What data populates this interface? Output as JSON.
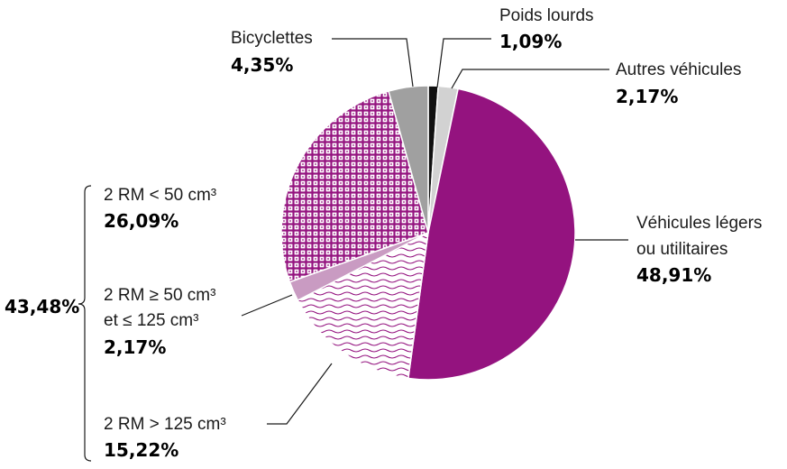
{
  "colors": {
    "poids_lourds": "#111111",
    "autres_vehicules": "#d2d2d2",
    "vehicules_legers": "#94137f",
    "rm_gt_125": "#94137f",
    "rm_50_125": "#c99bc2",
    "rm_lt_50": "#94137f",
    "bicyclettes": "#a0a0a0"
  },
  "chart_data": {
    "type": "pie",
    "start_angle_deg": 0,
    "direction": "clockwise",
    "slices": [
      {
        "key": "poids_lourds",
        "label": [
          "Poids lourds"
        ],
        "value": 1.09,
        "value_label": "1,09%",
        "fill": "solid",
        "color": "#111111"
      },
      {
        "key": "autres_vehicules",
        "label": [
          "Autres véhicules"
        ],
        "value": 2.17,
        "value_label": "2,17%",
        "fill": "solid",
        "color": "#d2d2d2"
      },
      {
        "key": "vehicules_legers",
        "label": [
          "Véhicules légers",
          "ou utilitaires"
        ],
        "value": 48.91,
        "value_label": "48,91%",
        "fill": "solid",
        "color": "#94137f"
      },
      {
        "key": "rm_gt_125",
        "label": [
          "2 RM > 125 cm³"
        ],
        "value": 15.22,
        "value_label": "15,22%",
        "fill": "waves",
        "color": "#94137f"
      },
      {
        "key": "rm_50_125",
        "label": [
          "2 RM ≥ 50 cm³",
          "et ≤ 125 cm³"
        ],
        "value": 2.17,
        "value_label": "2,17%",
        "fill": "solid",
        "color": "#c99bc2"
      },
      {
        "key": "rm_lt_50",
        "label": [
          "2 RM < 50 cm³"
        ],
        "value": 26.09,
        "value_label": "26,09%",
        "fill": "grid",
        "color": "#94137f"
      },
      {
        "key": "bicyclettes",
        "label": [
          "Bicyclettes"
        ],
        "value": 4.35,
        "value_label": "4,35%",
        "fill": "solid",
        "color": "#a0a0a0"
      }
    ],
    "group": {
      "label": "43,48%",
      "members": [
        "rm_lt_50",
        "rm_50_125",
        "rm_gt_125"
      ]
    }
  }
}
